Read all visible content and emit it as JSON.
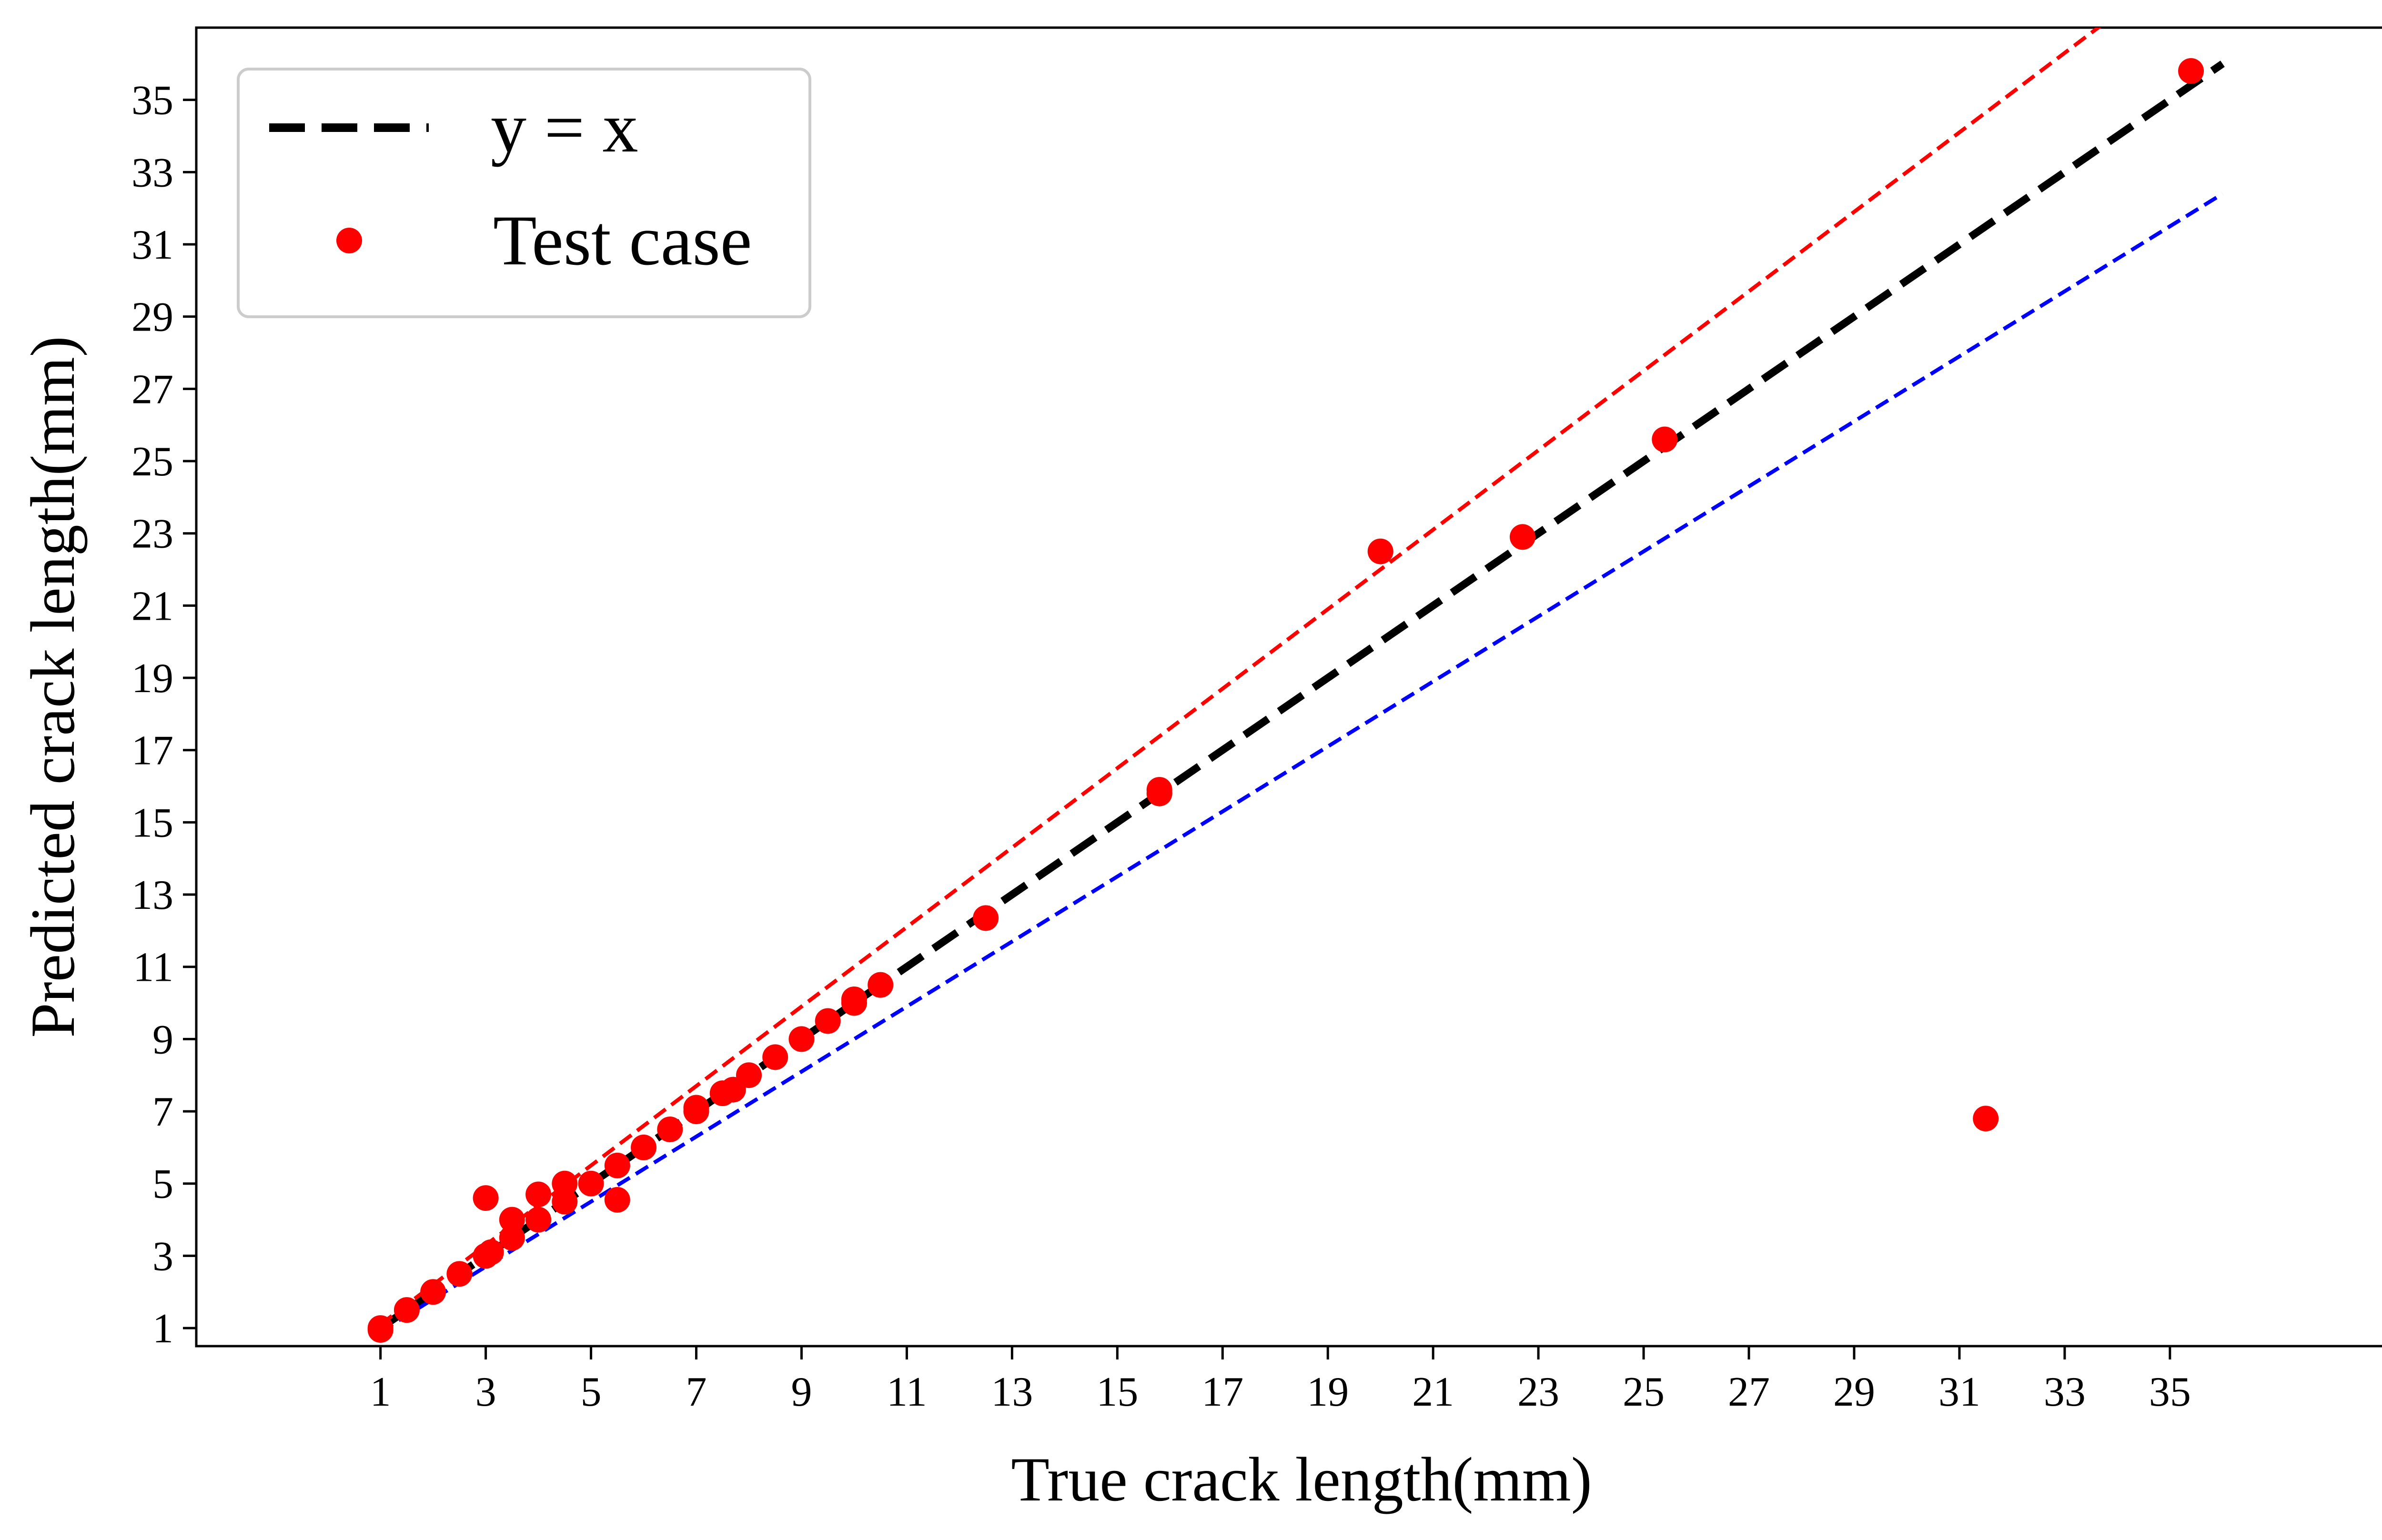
{
  "chart_data": {
    "type": "scatter",
    "xlabel": "True crack length(mm)",
    "ylabel": "Predicted crack length(mm)",
    "xlim": [
      -2.5,
      39.5
    ],
    "ylim": [
      0.5,
      37.0
    ],
    "xticks": [
      1,
      3,
      5,
      7,
      9,
      11,
      13,
      15,
      17,
      19,
      21,
      23,
      25,
      27,
      29,
      31,
      33,
      35
    ],
    "yticks": [
      1,
      3,
      5,
      7,
      9,
      11,
      13,
      15,
      17,
      19,
      21,
      23,
      25,
      27,
      29,
      31,
      33,
      35
    ],
    "grid": false,
    "legend": {
      "position": "top-left",
      "entries": [
        {
          "label": "y = x",
          "style": "dashed-line",
          "color": "#000000"
        },
        {
          "label": "Test case",
          "style": "marker",
          "color": "#ff0000"
        }
      ]
    },
    "reference_lines": [
      {
        "name": "y = x",
        "x": [
          1,
          36
        ],
        "y": [
          1,
          36
        ],
        "color": "#000000",
        "dash": "long",
        "width": "thick"
      },
      {
        "x": [
          1,
          36
        ],
        "y": [
          1.1,
          39.6
        ],
        "color": "#ff0000",
        "dash": "short",
        "width": "thin"
      },
      {
        "x": [
          1,
          36
        ],
        "y": [
          0.9,
          32.4
        ],
        "color": "#0000ff",
        "dash": "short",
        "width": "thin"
      }
    ],
    "series": [
      {
        "name": "Test case",
        "color": "#ff0000",
        "points": [
          [
            1.0,
            1.0
          ],
          [
            1.0,
            0.95
          ],
          [
            1.5,
            1.5
          ],
          [
            2.0,
            2.0
          ],
          [
            2.5,
            2.5
          ],
          [
            3.0,
            3.0
          ],
          [
            3.1,
            3.1
          ],
          [
            3.0,
            4.6
          ],
          [
            3.5,
            3.5
          ],
          [
            3.5,
            4.0
          ],
          [
            4.0,
            4.0
          ],
          [
            4.0,
            4.7
          ],
          [
            4.5,
            4.5
          ],
          [
            4.5,
            5.0
          ],
          [
            5.0,
            5.0
          ],
          [
            5.5,
            5.5
          ],
          [
            5.5,
            4.55
          ],
          [
            6.0,
            6.0
          ],
          [
            6.5,
            6.5
          ],
          [
            7.0,
            7.0
          ],
          [
            7.0,
            7.1
          ],
          [
            7.5,
            7.5
          ],
          [
            7.7,
            7.6
          ],
          [
            8.0,
            8.0
          ],
          [
            8.5,
            8.5
          ],
          [
            9.0,
            9.0
          ],
          [
            9.5,
            9.5
          ],
          [
            10.0,
            10.0
          ],
          [
            10.0,
            10.1
          ],
          [
            10.5,
            10.5
          ],
          [
            12.5,
            12.35
          ],
          [
            15.8,
            15.8
          ],
          [
            15.8,
            15.9
          ],
          [
            20.0,
            22.5
          ],
          [
            22.7,
            22.9
          ],
          [
            25.4,
            25.6
          ],
          [
            31.5,
            6.8
          ],
          [
            35.4,
            35.8
          ]
        ]
      }
    ],
    "colors": {
      "points": "#ff0000",
      "identity": "#000000",
      "upper_bound": "#ff0000",
      "lower_bound": "#0000ff",
      "legend_border": "#cccccc"
    }
  }
}
